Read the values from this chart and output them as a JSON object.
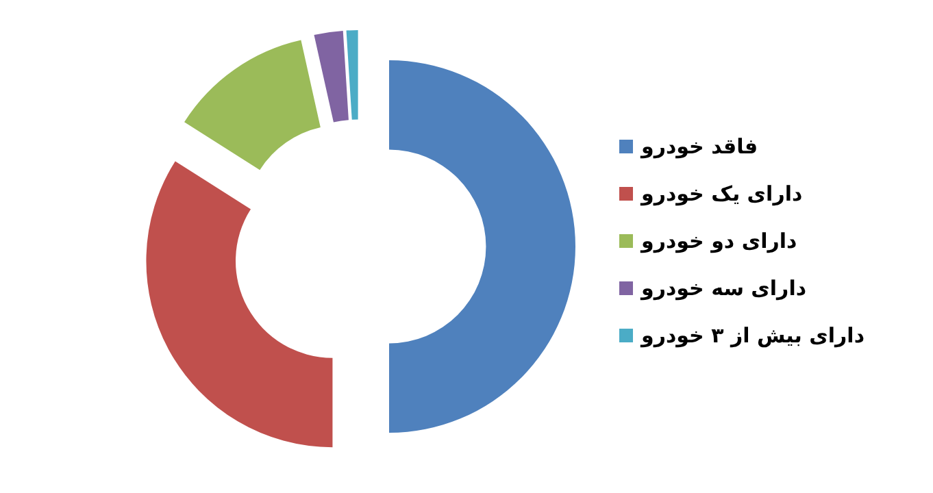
{
  "chart_data": {
    "type": "donut",
    "categories": [
      "فاقد خودرو",
      "دارای یک خودرو",
      "دارای دو خودرو",
      "دارای سه خودرو",
      "دارای بیش از ۳ خودرو"
    ],
    "values": [
      50,
      34,
      12.5,
      2.5,
      1
    ],
    "colors": [
      "#4f81bd",
      "#c0504d",
      "#9bbb59",
      "#8064a2",
      "#4bacc6"
    ],
    "legend": "right"
  }
}
